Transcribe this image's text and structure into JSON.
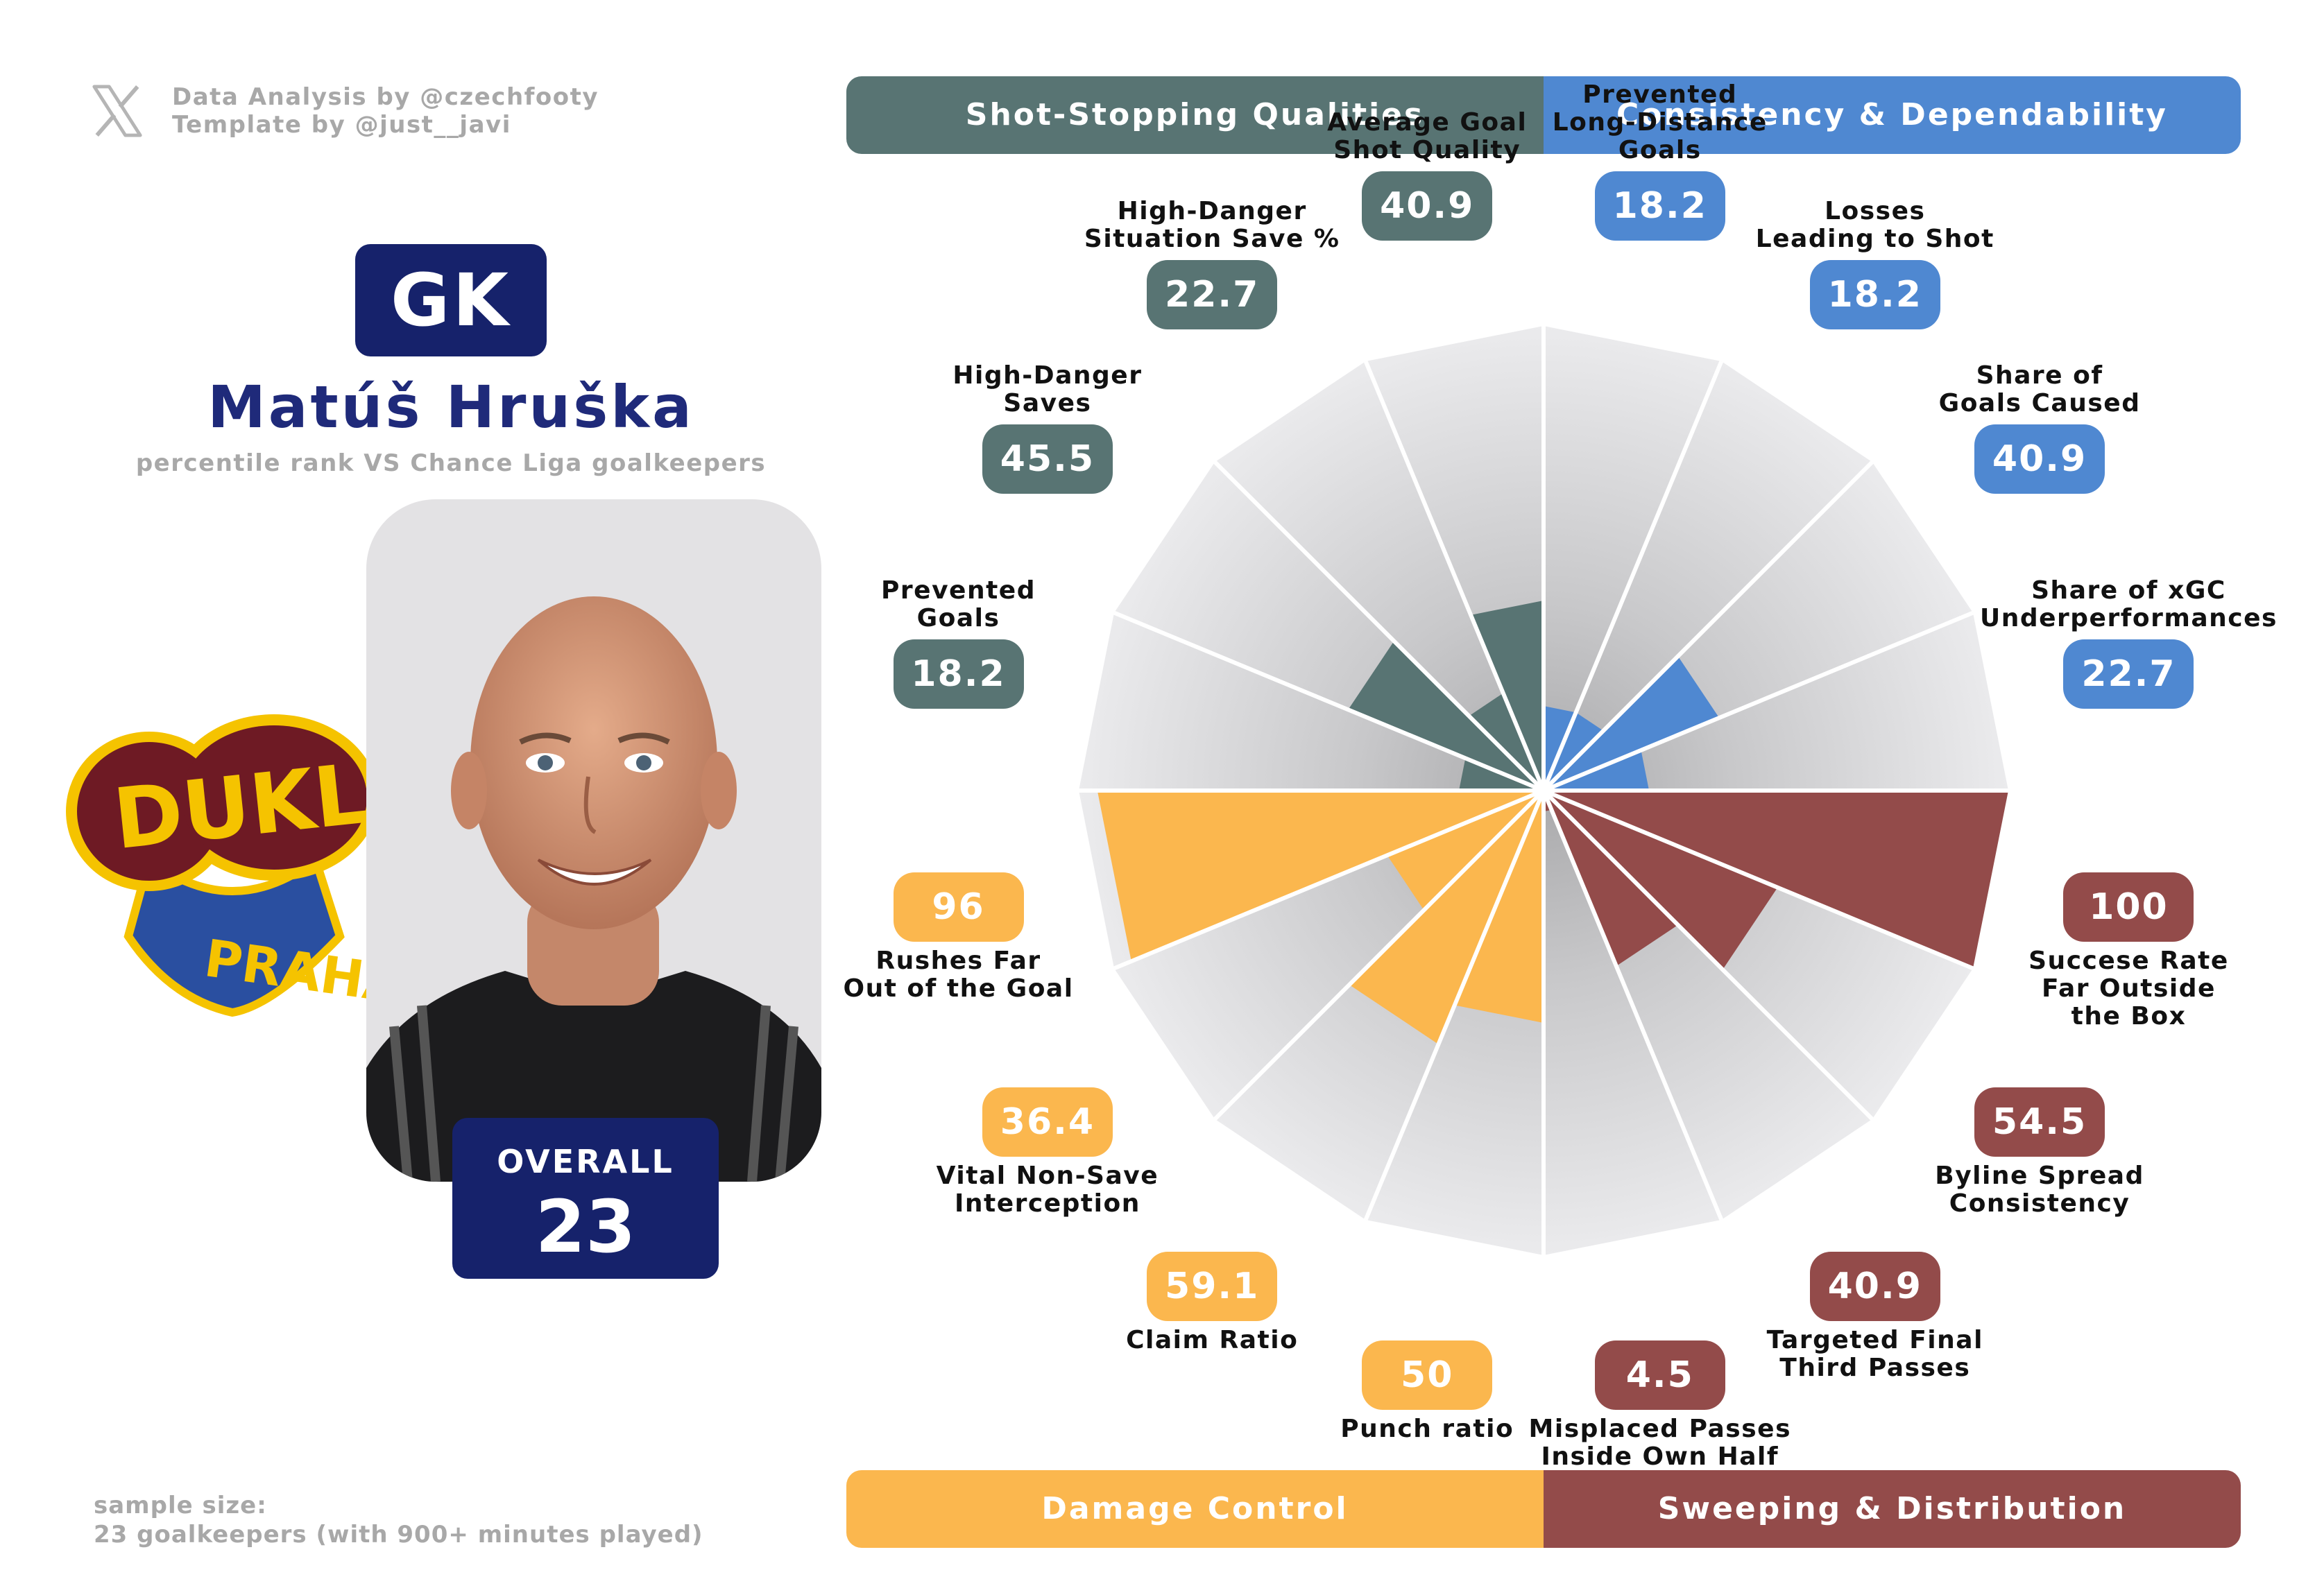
{
  "credits": {
    "analysis": "Data Analysis by @czechfooty",
    "template": "Template by @just__javi"
  },
  "player": {
    "position": "GK",
    "name": "Matúš Hruška",
    "subtitle": "percentile rank VS Chance Liga goalkeepers",
    "overall_label": "OVERALL",
    "overall_value": "23"
  },
  "club": {
    "name_top": "DUKLA",
    "name_bottom": "PRAHA"
  },
  "sample": {
    "line1": "sample size:",
    "line2": "23 goalkeepers (with 900+ minutes played)"
  },
  "categories": [
    {
      "name": "Shot-Stopping Qualities",
      "color": "#587473"
    },
    {
      "name": "Consistency & Dependability",
      "color": "#4f88d1"
    },
    {
      "name": "Damage Control",
      "color": "#fbb74e"
    },
    {
      "name": "Sweeping & Distribution",
      "color": "#934b4a"
    }
  ],
  "chart_data": {
    "type": "radar",
    "title": "Matúš Hruška",
    "scale": [
      0,
      100
    ],
    "metrics": [
      {
        "label": [
          "Prevented",
          "Long-Distance",
          "Goals"
        ],
        "value": 18.2,
        "display": "18.2",
        "category": 1
      },
      {
        "label": [
          "Losses",
          "Leading to Shot"
        ],
        "value": 18.2,
        "display": "18.2",
        "category": 1
      },
      {
        "label": [
          "Share of",
          "Goals Caused"
        ],
        "value": 40.9,
        "display": "40.9",
        "category": 1
      },
      {
        "label": [
          "Share of xGC",
          "Underperformances"
        ],
        "value": 22.7,
        "display": "22.7",
        "category": 1
      },
      {
        "label": [
          "Succese Rate",
          "Far Outside",
          "the Box"
        ],
        "value": 100,
        "display": "100",
        "category": 3
      },
      {
        "label": [
          "Byline Spread",
          "Consistency"
        ],
        "value": 54.5,
        "display": "54.5",
        "category": 3
      },
      {
        "label": [
          "Targeted Final",
          "Third Passes"
        ],
        "value": 40.9,
        "display": "40.9",
        "category": 3
      },
      {
        "label": [
          "Misplaced Passes",
          "Inside Own Half"
        ],
        "value": 4.5,
        "display": "4.5",
        "category": 3
      },
      {
        "label": [
          "Punch ratio"
        ],
        "value": 50,
        "display": "50",
        "category": 2
      },
      {
        "label": [
          "Claim Ratio"
        ],
        "value": 59.1,
        "display": "59.1",
        "category": 2
      },
      {
        "label": [
          "Vital Non-Save",
          "Interception"
        ],
        "value": 36.4,
        "display": "36.4",
        "category": 2
      },
      {
        "label": [
          "Rushes Far",
          "Out of the Goal"
        ],
        "value": 96,
        "display": "96",
        "category": 2
      },
      {
        "label": [
          "Prevented",
          "Goals"
        ],
        "value": 18.2,
        "display": "18.2",
        "category": 0
      },
      {
        "label": [
          "High-Danger",
          "Saves"
        ],
        "value": 45.5,
        "display": "45.5",
        "category": 0
      },
      {
        "label": [
          "High-Danger",
          "Situation Save %"
        ],
        "value": 22.7,
        "display": "22.7",
        "category": 0
      },
      {
        "label": [
          "Average Goal",
          "Shot Quality"
        ],
        "value": 40.9,
        "display": "40.9",
        "category": 0
      }
    ]
  }
}
